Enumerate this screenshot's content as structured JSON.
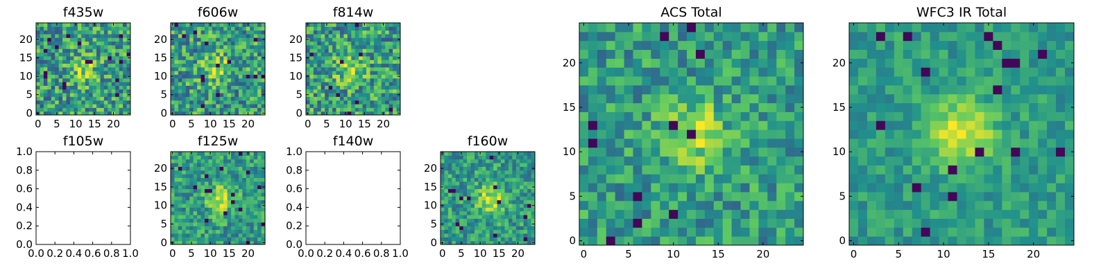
{
  "chart_data": [
    {
      "id": "f435w",
      "type": "heatmap",
      "title": "f435w",
      "xlim": [
        -0.5,
        24.5
      ],
      "ylim": [
        -0.5,
        24.5
      ],
      "xticks": [
        0,
        5,
        10,
        15,
        20
      ],
      "yticks": [
        0,
        5,
        10,
        15,
        20
      ],
      "grid_size": [
        25,
        25
      ],
      "peak_center": [
        12,
        12
      ],
      "noise_level": "high",
      "empty": false
    },
    {
      "id": "f606w",
      "type": "heatmap",
      "title": "f606w",
      "xlim": [
        -0.5,
        24.5
      ],
      "ylim": [
        -0.5,
        24.5
      ],
      "xticks": [
        0,
        5,
        10,
        15,
        20
      ],
      "yticks": [
        0,
        5,
        10,
        15,
        20
      ],
      "grid_size": [
        25,
        25
      ],
      "peak_center": [
        12,
        12
      ],
      "noise_level": "high",
      "empty": false
    },
    {
      "id": "f814w",
      "type": "heatmap",
      "title": "f814w",
      "xlim": [
        -0.5,
        24.5
      ],
      "ylim": [
        -0.5,
        24.5
      ],
      "xticks": [
        0,
        5,
        10,
        15,
        20
      ],
      "yticks": [
        0,
        5,
        10,
        15,
        20
      ],
      "grid_size": [
        25,
        25
      ],
      "peak_center": [
        11,
        12
      ],
      "noise_level": "high",
      "empty": false
    },
    {
      "id": "f105w",
      "type": "heatmap",
      "title": "f105w",
      "xlim": [
        0,
        1
      ],
      "ylim": [
        0,
        1
      ],
      "xticks": [
        "0.0",
        "0.2",
        "0.4",
        "0.6",
        "0.8",
        "1.0"
      ],
      "yticks": [
        "0.0",
        "0.2",
        "0.4",
        "0.6",
        "0.8",
        "1.0"
      ],
      "empty": true
    },
    {
      "id": "f125w",
      "type": "heatmap",
      "title": "f125w",
      "xlim": [
        -0.5,
        24.5
      ],
      "ylim": [
        -0.5,
        24.5
      ],
      "xticks": [
        0,
        5,
        10,
        15,
        20
      ],
      "yticks": [
        0,
        5,
        10,
        15,
        20
      ],
      "grid_size": [
        25,
        25
      ],
      "peak_center": [
        13,
        12
      ],
      "noise_level": "medium",
      "empty": false
    },
    {
      "id": "f140w",
      "type": "heatmap",
      "title": "f140w",
      "xlim": [
        0,
        1
      ],
      "ylim": [
        0,
        1
      ],
      "xticks": [
        "0.0",
        "0.2",
        "0.4",
        "0.6",
        "0.8",
        "1.0"
      ],
      "yticks": [
        "0.0",
        "0.2",
        "0.4",
        "0.6",
        "0.8",
        "1.0"
      ],
      "empty": true
    },
    {
      "id": "f160w",
      "type": "heatmap",
      "title": "f160w",
      "xlim": [
        -0.5,
        24.5
      ],
      "ylim": [
        -0.5,
        24.5
      ],
      "xticks": [
        0,
        5,
        10,
        15,
        20
      ],
      "yticks": [
        0,
        5,
        10,
        15,
        20
      ],
      "grid_size": [
        25,
        25
      ],
      "peak_center": [
        13,
        12
      ],
      "noise_level": "medium",
      "empty": false
    },
    {
      "id": "acs_total",
      "type": "heatmap",
      "title": "ACS Total",
      "xlim": [
        -0.5,
        24.5
      ],
      "ylim": [
        -0.5,
        24.5
      ],
      "xticks": [
        0,
        5,
        10,
        15,
        20
      ],
      "yticks": [
        0,
        5,
        10,
        15,
        20
      ],
      "grid_size": [
        25,
        25
      ],
      "peak_center": [
        12,
        12
      ],
      "noise_level": "medium",
      "empty": false
    },
    {
      "id": "wfc3_ir_total",
      "type": "heatmap",
      "title": "WFC3 IR Total",
      "xlim": [
        -0.5,
        24.5
      ],
      "ylim": [
        -0.5,
        24.5
      ],
      "xticks": [
        0,
        5,
        10,
        15,
        20
      ],
      "yticks": [
        0,
        5,
        10,
        15,
        20
      ],
      "grid_size": [
        25,
        25
      ],
      "peak_center": [
        12,
        12
      ],
      "noise_level": "low",
      "empty": false
    }
  ],
  "colormap": [
    "#440154",
    "#3b528b",
    "#21918c",
    "#5ec962",
    "#fde725"
  ]
}
